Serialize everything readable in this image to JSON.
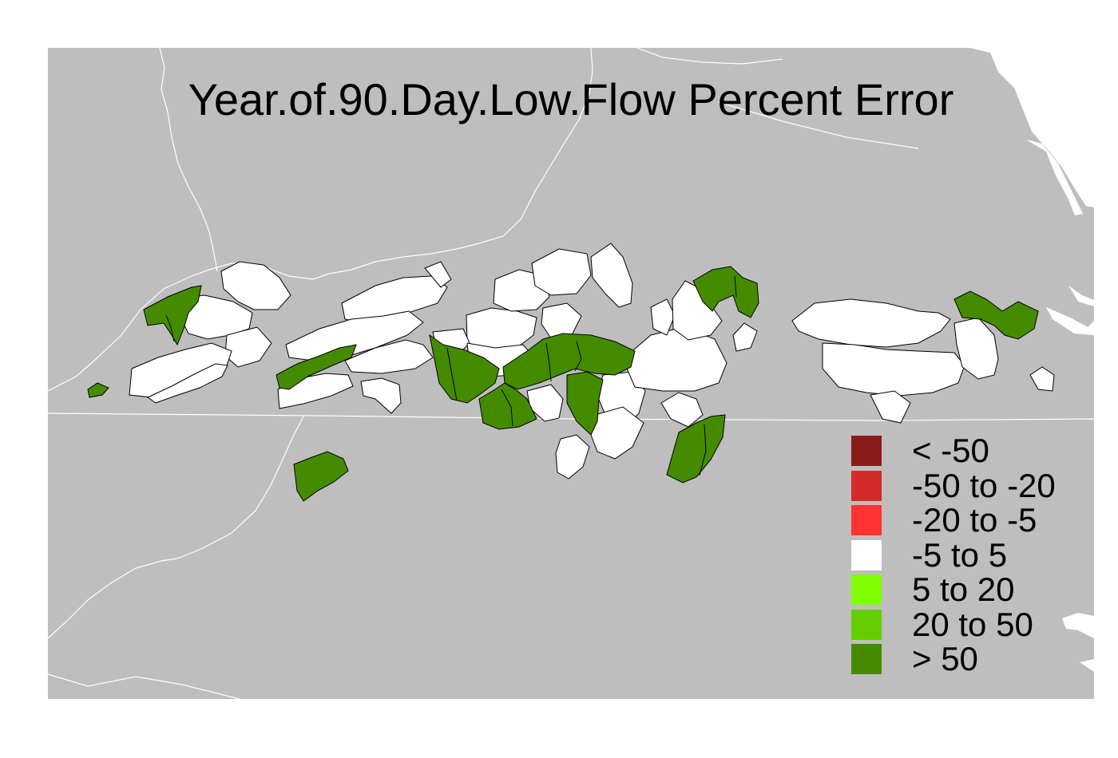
{
  "title": "Year.of.90.Day.Low.Flow Percent Error",
  "colors": {
    "background": "#bebebe",
    "boundary_lines": "#ffffff",
    "watershed_outline": "#000000"
  },
  "legend": {
    "items": [
      {
        "label": "< -50",
        "color": "#8b1a1a"
      },
      {
        "label": "-50 to -20",
        "color": "#d42a2a"
      },
      {
        "label": "-20 to -5",
        "color": "#ff3333"
      },
      {
        "label": "-5 to 5",
        "color": "#ffffff"
      },
      {
        "label": "5 to 20",
        "color": "#7fff00"
      },
      {
        "label": "20 to 50",
        "color": "#66cd00"
      },
      {
        "label": "> 50",
        "color": "#458b00"
      }
    ]
  }
}
